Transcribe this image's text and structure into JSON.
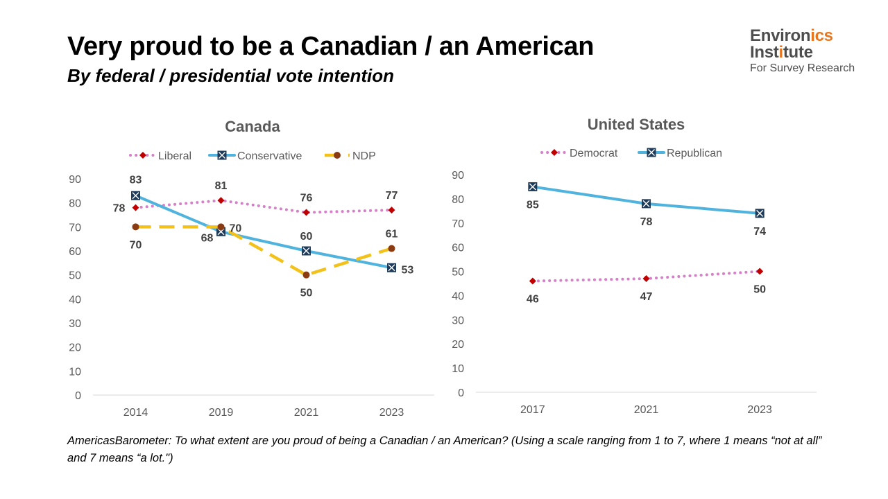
{
  "title": "Very proud to be a Canadian / an American",
  "subtitle": "By federal / presidential vote intention",
  "logo": {
    "line1_a": "Environ",
    "line1_b": "ics",
    "line2_a": "Inst",
    "line2_b": "i",
    "line2_c": "tute",
    "line3": "For Survey Research"
  },
  "footnote": "AmericasBarometer: To what extent are you proud of being a Canadian / an American? (Using a scale ranging from 1 to 7, where 1 means “not at all” and 7 means “a lot.\")",
  "colors": {
    "dem_lib": "#d77fc8",
    "rep_con": "#4fb3de",
    "ndp": "#f2c21b",
    "diamond": "#c00000",
    "xmarker": "#1f3b5a",
    "ndp_marker": "#8b3b12"
  },
  "chart_data": [
    {
      "type": "line",
      "title": "Canada",
      "categories": [
        "2014",
        "2019",
        "2021",
        "2023"
      ],
      "ylim": [
        0,
        90
      ],
      "yticks": [
        0,
        10,
        20,
        30,
        40,
        50,
        60,
        70,
        80,
        90
      ],
      "grid": false,
      "legend": "top",
      "series": [
        {
          "name": "Liberal",
          "values": [
            78,
            81,
            76,
            77
          ],
          "style": "dotted",
          "marker": "diamond",
          "color": "#d77fc8",
          "labels": [
            "78",
            "81",
            "76",
            "77"
          ]
        },
        {
          "name": "Conservative",
          "values": [
            83,
            68,
            60,
            53
          ],
          "style": "solid",
          "marker": "x-square",
          "color": "#4fb3de",
          "labels": [
            "83",
            "68",
            "60",
            "53"
          ]
        },
        {
          "name": "NDP",
          "values": [
            70,
            70,
            50,
            61
          ],
          "style": "dashed",
          "marker": "circle",
          "color": "#f2c21b",
          "labels": [
            "70",
            "70",
            "50",
            "61"
          ]
        }
      ]
    },
    {
      "type": "line",
      "title": "United States",
      "categories": [
        "2017",
        "2021",
        "2023"
      ],
      "ylim": [
        0,
        90
      ],
      "yticks": [
        0,
        10,
        20,
        30,
        40,
        50,
        60,
        70,
        80,
        90
      ],
      "grid": false,
      "legend": "top",
      "series": [
        {
          "name": "Democrat",
          "values": [
            46,
            47,
            50
          ],
          "style": "dotted",
          "marker": "diamond",
          "color": "#d77fc8",
          "labels": [
            "46",
            "47",
            "50"
          ]
        },
        {
          "name": "Republican",
          "values": [
            85,
            78,
            74
          ],
          "style": "solid",
          "marker": "x-square",
          "color": "#4fb3de",
          "labels": [
            "85",
            "78",
            "74"
          ]
        }
      ]
    }
  ]
}
